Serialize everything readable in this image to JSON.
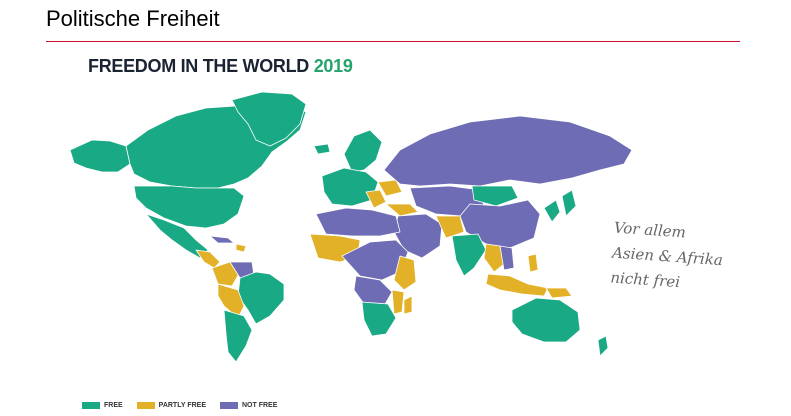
{
  "slide": {
    "title": "Politische Freiheit"
  },
  "map": {
    "heading": "FREEDOM IN THE WORLD",
    "year": "2019",
    "colors": {
      "free": "#1aa985",
      "partly_free": "#e2b128",
      "not_free": "#6e6cb4",
      "border": "#ffffff"
    },
    "legend": [
      {
        "key": "free",
        "label": "FREE",
        "color": "#1aa985"
      },
      {
        "key": "partly_free",
        "label": "PARTLY FREE",
        "color": "#e2b128"
      },
      {
        "key": "not_free",
        "label": "NOT FREE",
        "color": "#6e6cb4"
      }
    ]
  },
  "annotation": {
    "lines": [
      "Vor allem",
      "Asien & Afrika",
      "nicht frei"
    ]
  },
  "colors": {
    "title_rule": "#c8102e",
    "heading_text": "#1b2333"
  }
}
